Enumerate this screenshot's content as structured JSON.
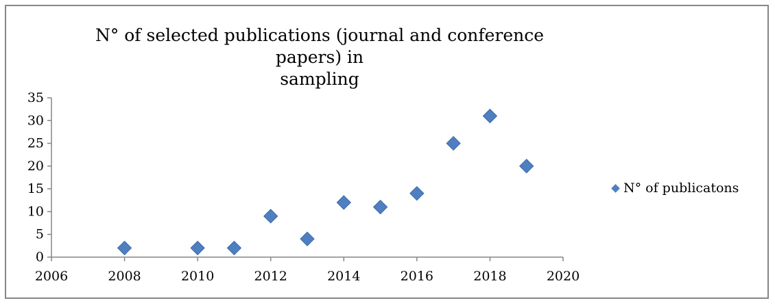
{
  "chart_data": {
    "type": "scatter",
    "title_line1": "N° of selected publications (journal and conference papers) in",
    "title_line2": "sampling",
    "xlabel": "",
    "ylabel": "",
    "xlim": [
      2006,
      2020
    ],
    "ylim": [
      0,
      35
    ],
    "x_ticks": [
      2006,
      2008,
      2010,
      2012,
      2014,
      2016,
      2018,
      2020
    ],
    "y_ticks": [
      0,
      5,
      10,
      15,
      20,
      25,
      30,
      35
    ],
    "grid": false,
    "legend_position": "right",
    "marker": "diamond",
    "marker_color": "#4f7fc0",
    "series": [
      {
        "name": "N° of publicatons",
        "points": [
          {
            "x": 2008,
            "y": 2
          },
          {
            "x": 2010,
            "y": 2
          },
          {
            "x": 2011,
            "y": 2
          },
          {
            "x": 2012,
            "y": 9
          },
          {
            "x": 2013,
            "y": 4
          },
          {
            "x": 2014,
            "y": 12
          },
          {
            "x": 2015,
            "y": 11
          },
          {
            "x": 2016,
            "y": 14
          },
          {
            "x": 2017,
            "y": 25
          },
          {
            "x": 2018,
            "y": 31
          },
          {
            "x": 2019,
            "y": 20
          }
        ]
      }
    ]
  }
}
